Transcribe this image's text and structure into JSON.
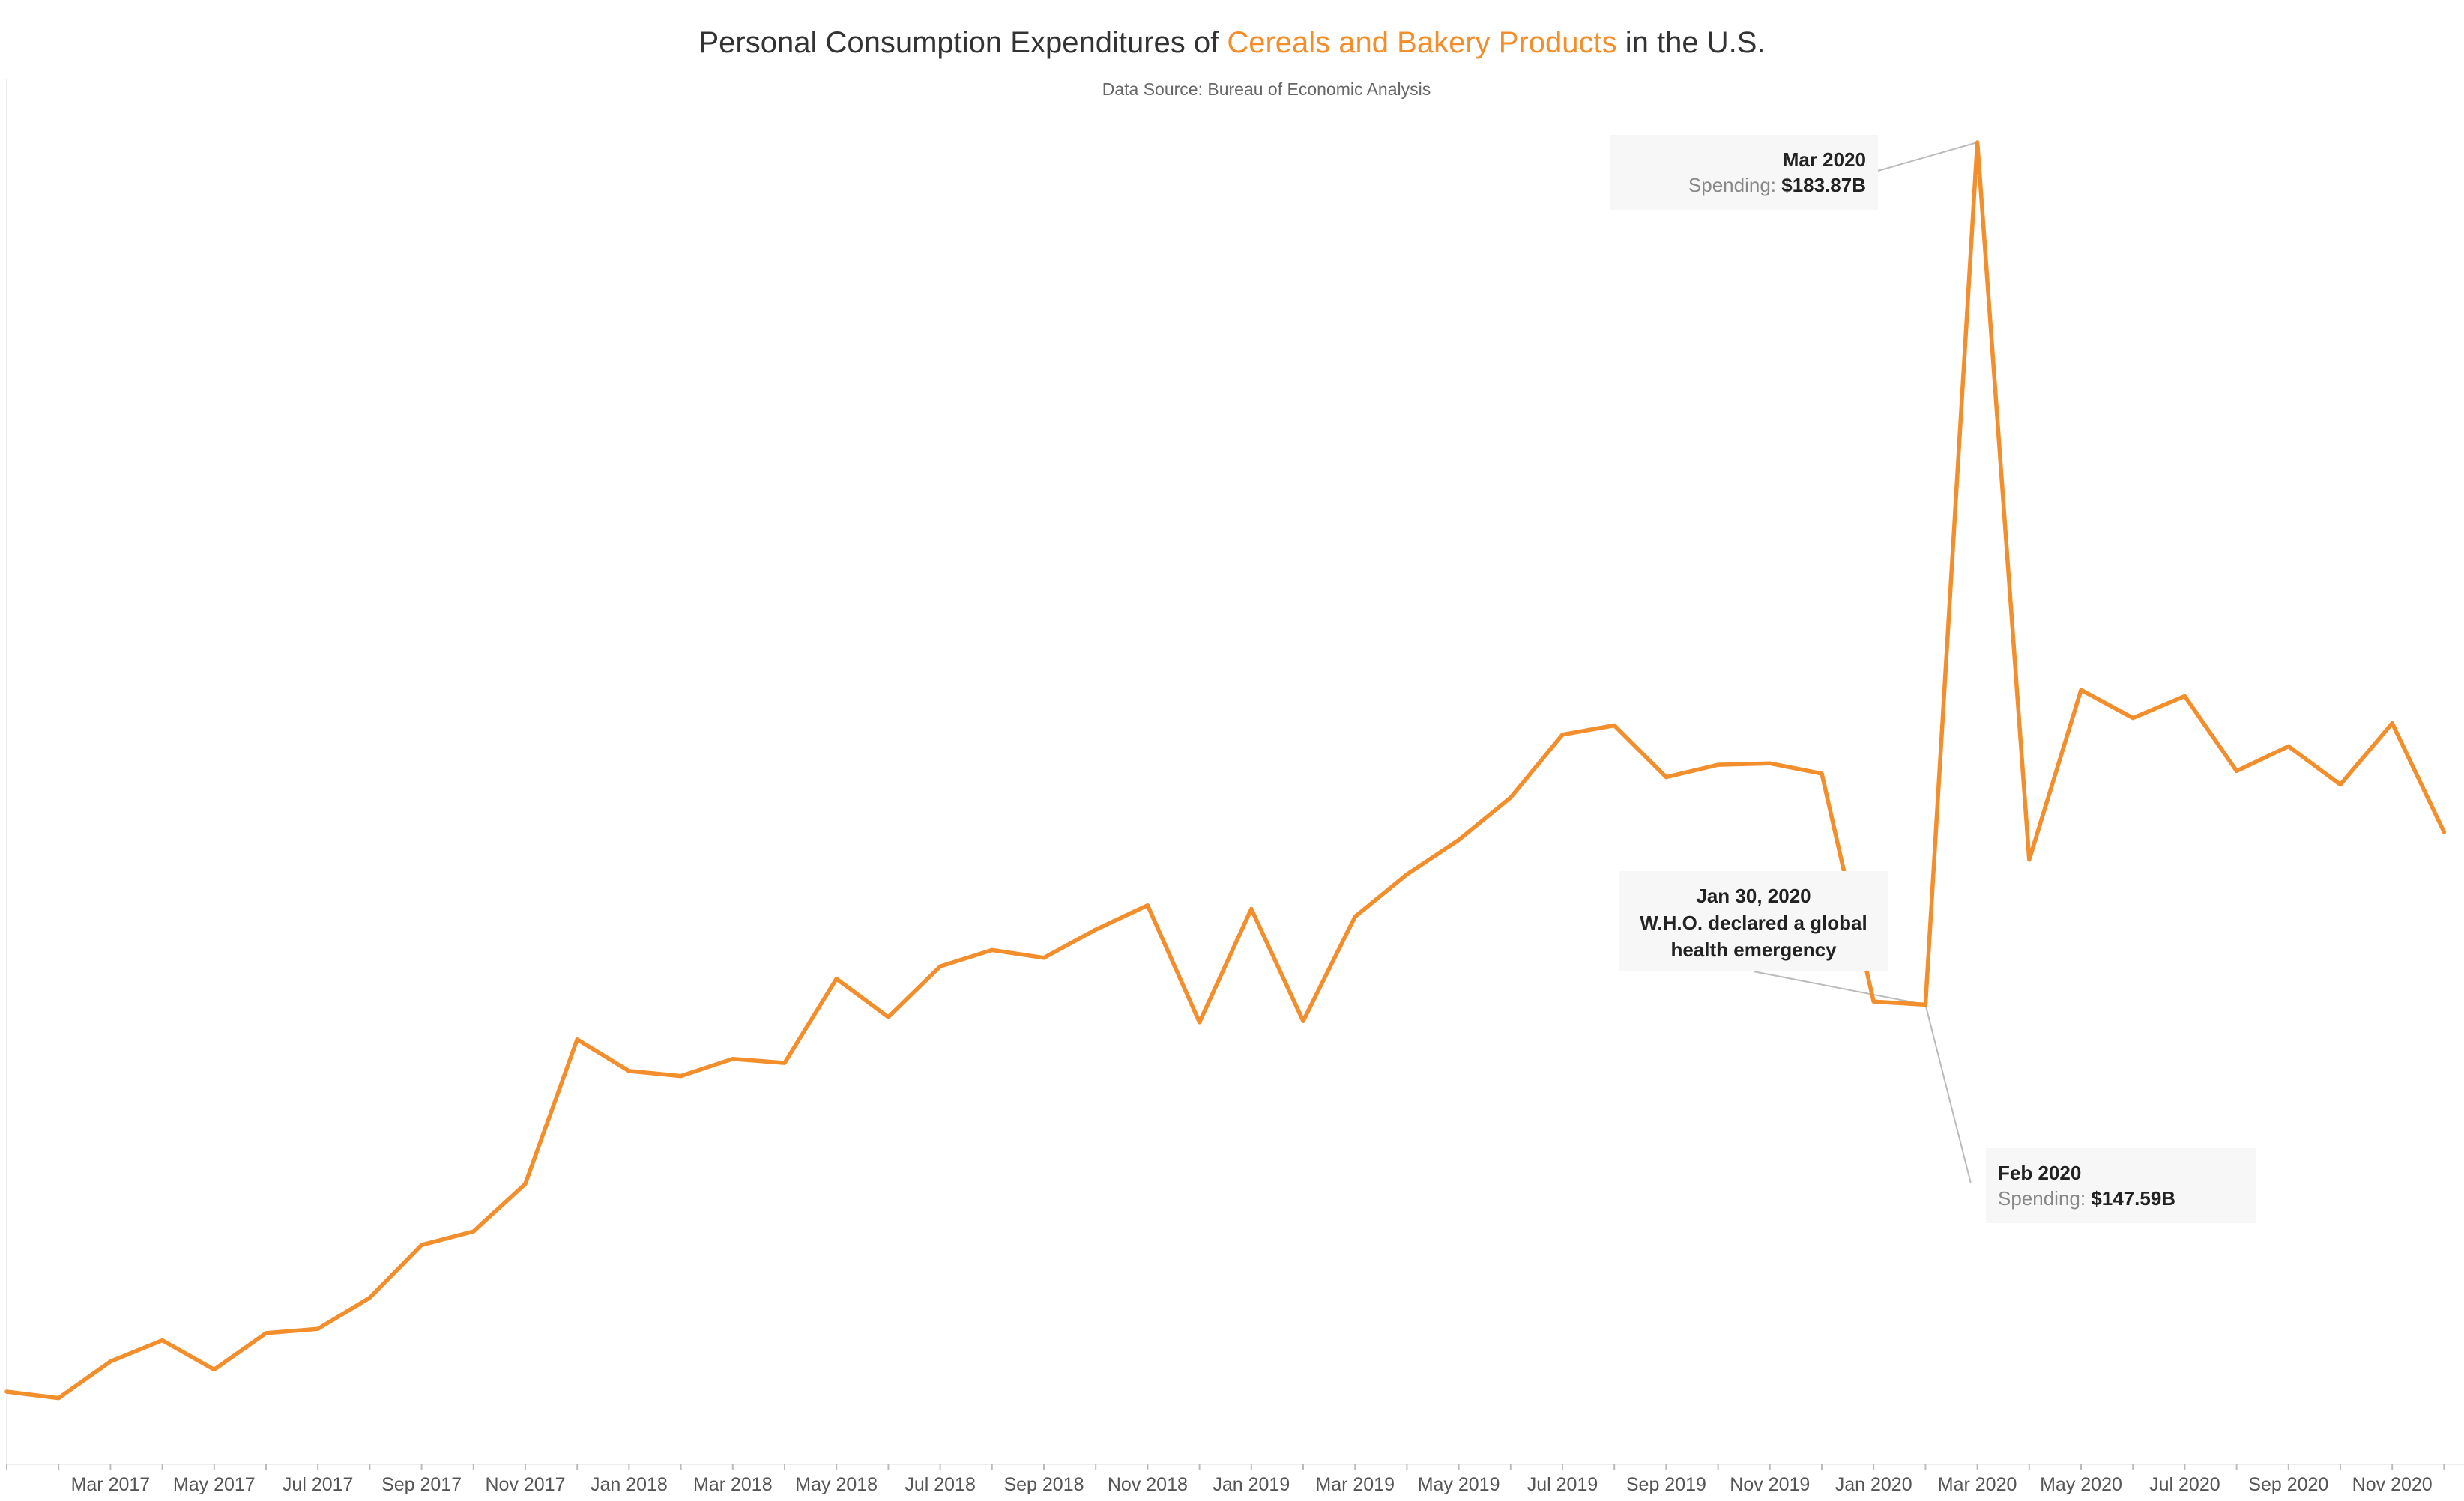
{
  "colors": {
    "accent": "#F28E2B",
    "text": "#333333",
    "subtle": "#666666",
    "axis": "#bbbbbb"
  },
  "chart_data": {
    "type": "line",
    "title": {
      "prefix": "Personal Consumption Expenditures of ",
      "highlight": "Cereals and Bakery Products",
      "suffix": " in the U.S."
    },
    "subtitle": "Data Source: Bureau of Economic Analysis",
    "xlabel": "",
    "ylabel": "",
    "grid": false,
    "x": [
      "Jan 2017",
      "Feb 2017",
      "Mar 2017",
      "Apr 2017",
      "May 2017",
      "Jun 2017",
      "Jul 2017",
      "Aug 2017",
      "Sep 2017",
      "Oct 2017",
      "Nov 2017",
      "Dec 2017",
      "Jan 2018",
      "Feb 2018",
      "Mar 2018",
      "Apr 2018",
      "May 2018",
      "Jun 2018",
      "Jul 2018",
      "Aug 2018",
      "Sep 2018",
      "Oct 2018",
      "Nov 2018",
      "Dec 2018",
      "Jan 2019",
      "Feb 2019",
      "Mar 2019",
      "Apr 2019",
      "May 2019",
      "Jun 2019",
      "Jul 2019",
      "Aug 2019",
      "Sep 2019",
      "Oct 2019",
      "Nov 2019",
      "Dec 2019",
      "Jan 2020",
      "Feb 2020",
      "Mar 2020",
      "Apr 2020",
      "May 2020",
      "Jun 2020",
      "Jul 2020",
      "Aug 2020",
      "Sep 2020",
      "Oct 2020",
      "Nov 2020",
      "Dec 2020"
    ],
    "values": [
      131.31,
      131.04,
      132.58,
      133.47,
      132.24,
      133.77,
      133.95,
      135.26,
      137.48,
      138.05,
      140.05,
      146.13,
      144.8,
      144.59,
      145.31,
      145.14,
      148.68,
      147.07,
      149.2,
      149.89,
      149.56,
      150.75,
      151.77,
      146.85,
      151.62,
      146.9,
      151.29,
      153.07,
      154.52,
      156.3,
      158.95,
      159.34,
      157.16,
      157.68,
      157.74,
      157.31,
      147.72,
      147.59,
      183.87,
      153.69,
      160.83,
      159.65,
      160.57,
      157.42,
      158.46,
      156.85,
      159.43,
      154.85
    ],
    "tick_labels": [
      "Mar 2017",
      "May 2017",
      "Jul 2017",
      "Sep 2017",
      "Nov 2017",
      "Jan 2018",
      "Mar 2018",
      "May 2018",
      "Jul 2018",
      "Sep 2018",
      "Nov 2018",
      "Jan 2019",
      "Mar 2019",
      "May 2019",
      "Jul 2019",
      "Sep 2019",
      "Nov 2019",
      "Jan 2020",
      "Mar 2020",
      "May 2020",
      "Jul 2020",
      "Sep 2020",
      "Nov 2020"
    ],
    "annotations": [
      {
        "id": "peak",
        "point": "Mar 2020",
        "lines": [
          {
            "label": "",
            "value": "Mar 2020"
          },
          {
            "label": "Spending:",
            "value": "$183.87B"
          }
        ]
      },
      {
        "id": "feb",
        "point": "Feb 2020",
        "lines": [
          {
            "label": "",
            "value": "Feb 2020"
          },
          {
            "label": "Spending:",
            "value": "$147.59B"
          }
        ]
      },
      {
        "id": "who",
        "point": "Feb 2020",
        "lines": [
          {
            "label": "",
            "value": "Jan 30, 2020"
          },
          {
            "label": "",
            "value": "W.H.O. declared a global"
          },
          {
            "label": "",
            "value": "health emergency"
          }
        ]
      }
    ]
  }
}
